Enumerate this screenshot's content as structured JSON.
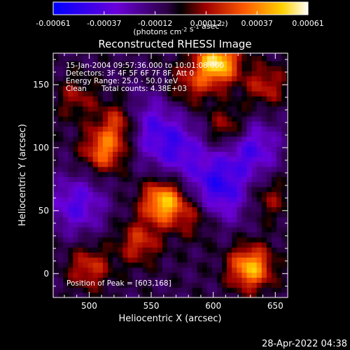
{
  "chart_data": {
    "type": "heatmap",
    "title": "Reconstructed RHESSI Image",
    "xlabel": "Heliocentric X (arcsec)",
    "ylabel": "Heliocentric Y (arcsec)",
    "xlim": [
      471.0,
      660.0
    ],
    "ylim": [
      -19.0,
      175.0
    ],
    "xticks": [
      500,
      550,
      600,
      650
    ],
    "yticks": [
      0,
      50,
      100,
      150
    ],
    "colorbar": {
      "min": -0.00061,
      "max": 0.00061,
      "ticks": [
        "-0.00061",
        "-0.00037",
        "-0.00012",
        "0.00012",
        "0.00037",
        "0.00061"
      ],
      "unit_label": "(photons cm-2 s-1 asec-2)"
    },
    "annotations": {
      "time_range": "15-Jan-2004 09:57:36.000 to 10:01:08.000",
      "detectors": "Detectors: 3F 4F 5F 6F 7F 8F, Att 0",
      "energy": "Energy Range: 25.0 - 50.0 keV",
      "method": "Clean",
      "total_counts": "Total counts: 4.38E+03",
      "peak": "Position of Peak = [603,168]"
    },
    "sources": [
      {
        "x": 603,
        "y": 168,
        "peak": 1.0
      },
      {
        "x": 560,
        "y": 57,
        "peak": 0.9
      },
      {
        "x": 512,
        "y": 98,
        "peak": 0.65
      },
      {
        "x": 525,
        "y": 120,
        "peak": 0.55
      },
      {
        "x": 630,
        "y": 5,
        "peak": 0.85
      },
      {
        "x": 612,
        "y": 115,
        "peak": 0.45
      },
      {
        "x": 540,
        "y": 25,
        "peak": 0.45
      },
      {
        "x": 500,
        "y": 5,
        "peak": 0.45
      },
      {
        "x": 642,
        "y": 150,
        "peak": 0.4
      },
      {
        "x": 582,
        "y": 150,
        "peak": 0.35
      },
      {
        "x": 585,
        "y": 45,
        "peak": 0.3
      },
      {
        "x": 645,
        "y": 60,
        "peak": 0.3
      },
      {
        "x": 490,
        "y": 140,
        "peak": 0.3
      }
    ],
    "negative_regions": [
      {
        "x": 630,
        "y": 100,
        "depth": 0.55
      },
      {
        "x": 570,
        "y": 100,
        "depth": 0.5
      },
      {
        "x": 490,
        "y": 55,
        "depth": 0.5
      },
      {
        "x": 545,
        "y": 120,
        "depth": 0.45
      },
      {
        "x": 600,
        "y": 75,
        "depth": 0.4
      },
      {
        "x": 610,
        "y": 60,
        "depth": 0.35
      }
    ]
  },
  "footer": {
    "timestamp": "28-Apr-2022 04:38"
  },
  "colors": {
    "background": "#000000",
    "text": "#ffffff"
  }
}
